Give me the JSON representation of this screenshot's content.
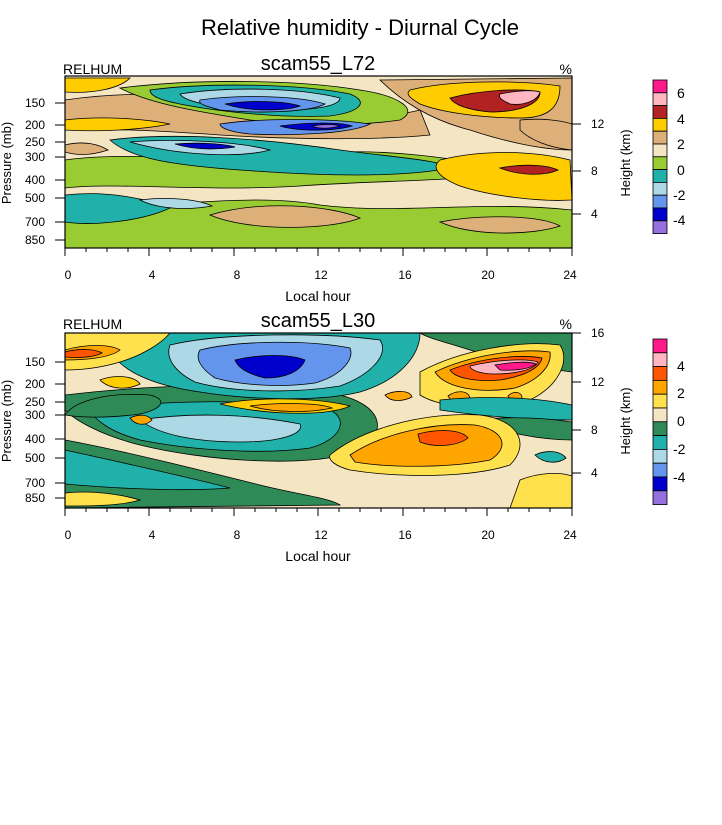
{
  "figure": {
    "title": "Relative humidity - Diurnal Cycle"
  },
  "chart_data": [
    {
      "type": "heatmap",
      "title": "scam55_L72",
      "left_label": "RELHUM",
      "right_label": "%",
      "xlabel": "Local hour",
      "ylabel": "Pressure (mb)",
      "ylabel_right": "Height (km)",
      "xlim": [
        0,
        24
      ],
      "xticks": [
        "0",
        "4",
        "8",
        "12",
        "16",
        "20",
        "24"
      ],
      "yticks": [
        "150",
        "200",
        "250",
        "300",
        "400",
        "500",
        "700",
        "850"
      ],
      "yticks_right": [
        "12",
        "8",
        "4"
      ],
      "colorbar": {
        "labels": [
          "6",
          "4",
          "2",
          "0",
          "-2",
          "-4"
        ],
        "colors": [
          "#ff1a8c",
          "#ffb6c1",
          "#b22222",
          "#ffcc00",
          "#ddb07a",
          "#f5e6c3",
          "#99cc33",
          "#20b2aa",
          "#add8e6",
          "#6495ed",
          "#0000cd",
          "#9370db"
        ]
      }
    },
    {
      "type": "heatmap",
      "title": "scam55_L30",
      "left_label": "RELHUM",
      "right_label": "%",
      "xlabel": "Local hour",
      "ylabel": "Pressure (mb)",
      "ylabel_right": "Height (km)",
      "xlim": [
        0,
        24
      ],
      "xticks": [
        "0",
        "4",
        "8",
        "12",
        "16",
        "20",
        "24"
      ],
      "yticks": [
        "150",
        "200",
        "250",
        "300",
        "400",
        "500",
        "700",
        "850"
      ],
      "yticks_right": [
        "16",
        "12",
        "8",
        "4"
      ],
      "colorbar": {
        "labels": [
          "4",
          "2",
          "0",
          "-2",
          "-4"
        ],
        "colors": [
          "#ff1a8c",
          "#ffb6c1",
          "#ff5500",
          "#ffa500",
          "#ffe14d",
          "#f5e6c3",
          "#2e8b57",
          "#20b2aa",
          "#add8e6",
          "#6495ed",
          "#0000cd",
          "#9370db"
        ]
      }
    }
  ]
}
